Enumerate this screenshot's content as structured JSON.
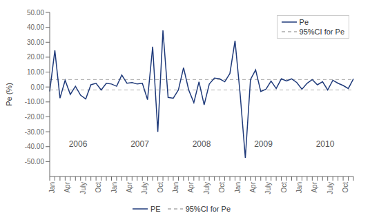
{
  "chart_data": {
    "type": "line",
    "y_label": "Pe (%)",
    "categories": [
      "Jan",
      null,
      null,
      "Apr",
      null,
      null,
      "July",
      null,
      null,
      "Oct",
      null,
      null,
      "Jan",
      null,
      null,
      "Apr",
      null,
      null,
      "July",
      null,
      null,
      "Oct",
      null,
      null,
      "Jan",
      null,
      null,
      "Apr",
      null,
      null,
      "July",
      null,
      null,
      "Oct",
      null,
      null,
      "Jan",
      null,
      null,
      "Apr",
      null,
      null,
      "July",
      null,
      null,
      "Oct",
      null,
      null,
      "Jan",
      null,
      null,
      "Apr",
      null,
      null,
      "July",
      null,
      null,
      "Oct",
      null,
      null
    ],
    "series": [
      {
        "name": "Pe",
        "color": "#1f3a7a",
        "marker": "none",
        "line_style": "solid",
        "values": [
          -3.0,
          24.5,
          -7.5,
          4.5,
          -5.0,
          0.5,
          -5.5,
          -8.0,
          1.5,
          2.5,
          -2.0,
          2.5,
          2.0,
          0.5,
          8.0,
          2.5,
          3.0,
          2.0,
          2.5,
          -8.5,
          27.0,
          -30.0,
          38.0,
          -7.0,
          -7.5,
          -2.0,
          13.0,
          -2.0,
          -10.5,
          3.5,
          -12.0,
          2.0,
          6.0,
          5.5,
          3.5,
          9.0,
          31.0,
          -5.0,
          -47.5,
          5.0,
          11.5,
          -3.0,
          -1.5,
          4.0,
          -1.0,
          5.5,
          4.0,
          5.5,
          3.0,
          -1.5,
          2.5,
          5.0,
          1.5,
          3.5,
          -2.0,
          4.5,
          2.5,
          1.0,
          -1.0,
          5.5
        ]
      }
    ],
    "reference_lines": [
      {
        "name": "95%CI for Pe",
        "values": [
          5.0,
          -2.0
        ],
        "color": "#aaaaaa",
        "line_style": "dashed"
      }
    ],
    "ylim": [
      -60.0,
      50.0
    ],
    "yticks": [
      {
        "value": -50.0,
        "label": "-50.00"
      },
      {
        "value": -40.0,
        "label": "-40.00"
      },
      {
        "value": -30.0,
        "label": "-30.00"
      },
      {
        "value": -20.0,
        "label": "-20.00"
      },
      {
        "value": -10.0,
        "label": "-10.00"
      },
      {
        "value": 0.0,
        "label": "0.00"
      },
      {
        "value": 10.0,
        "label": "10.00"
      },
      {
        "value": 20.0,
        "label": "20.00"
      },
      {
        "value": 30.0,
        "label": "30.00"
      },
      {
        "value": 40.0,
        "label": "40.00"
      },
      {
        "value": 50.0,
        "label": "50.00"
      }
    ],
    "grid": false,
    "legend": "upper right",
    "bottom_legend": [
      "PE",
      "95%CI for Pe"
    ],
    "annotations": [
      {
        "text": "2006",
        "x": 5.5,
        "y": -38
      },
      {
        "text": "2007",
        "x": 17.5,
        "y": -38
      },
      {
        "text": "2008",
        "x": 29.5,
        "y": -38
      },
      {
        "text": "2009",
        "x": 41.5,
        "y": -38
      },
      {
        "text": "2010",
        "x": 53.5,
        "y": -38
      }
    ]
  }
}
